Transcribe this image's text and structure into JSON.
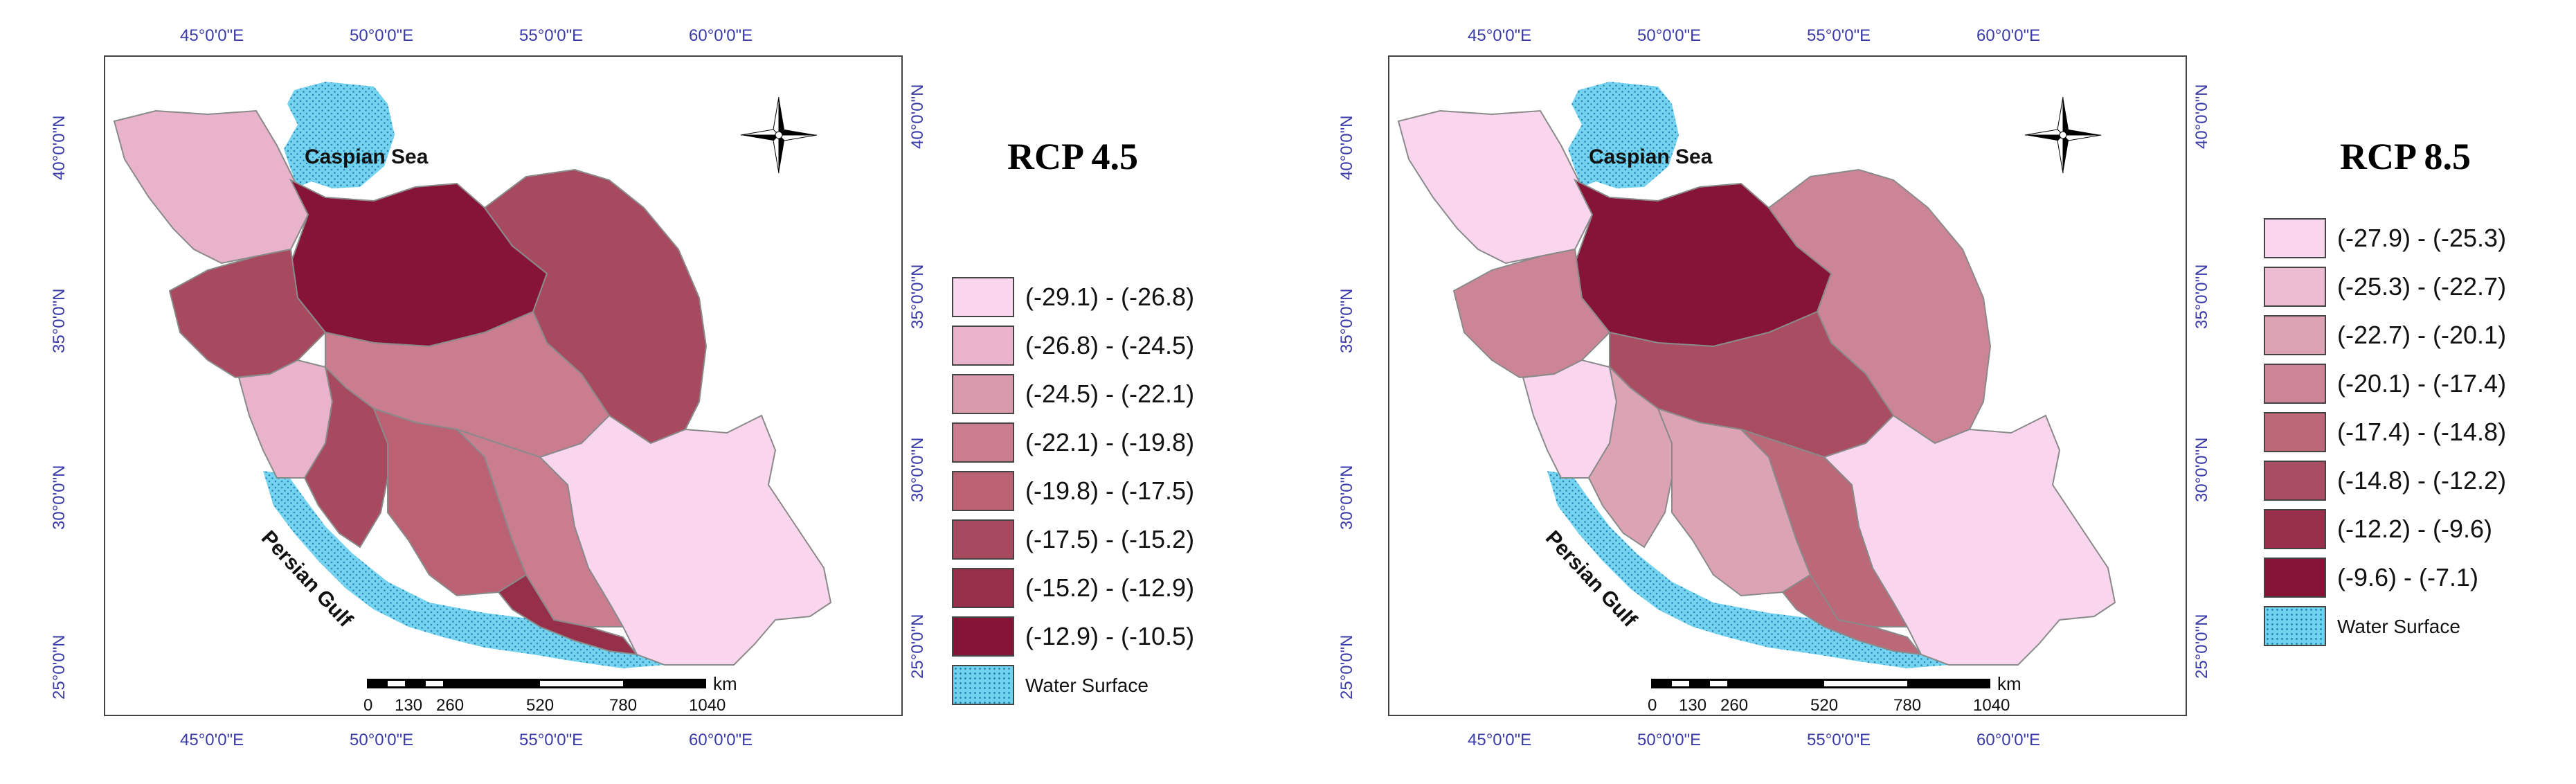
{
  "figures": [
    {
      "title": "RCP 4.5",
      "lon_ticks": [
        "45°0'0\"E",
        "50°0'0\"E",
        "55°0'0\"E",
        "60°0'0\"E"
      ],
      "lat_ticks": [
        "40°0'0\"N",
        "35°0'0\"N",
        "30°0'0\"N",
        "25°0'0\"N"
      ],
      "sea_labels": {
        "caspian": "Caspian Sea",
        "gulf": "Persian Gulf"
      },
      "scale": {
        "unit": "km",
        "ticks": [
          "0",
          "130",
          "260",
          "520",
          "780",
          "1040"
        ]
      },
      "legend": [
        {
          "label": "(-29.1) - (-26.8)",
          "color": "#f9d6ee"
        },
        {
          "label": "(-26.8) - (-24.5)",
          "color": "#e8b3cb"
        },
        {
          "label": "(-24.5) - (-22.1)",
          "color": "#d99aab"
        },
        {
          "label": "(-22.1) - (-19.8)",
          "color": "#c97d8f"
        },
        {
          "label": "(-19.8) - (-17.5)",
          "color": "#ba6274"
        },
        {
          "label": "(-17.5) - (-15.2)",
          "color": "#a84a5f"
        },
        {
          "label": "(-15.2) - (-12.9)",
          "color": "#962f49"
        },
        {
          "label": "(-12.9) - (-10.5)",
          "color": "#861437"
        }
      ],
      "water_label": "Water Surface"
    },
    {
      "title": "RCP 8.5",
      "lon_ticks": [
        "45°0'0\"E",
        "50°0'0\"E",
        "55°0'0\"E",
        "60°0'0\"E"
      ],
      "lat_ticks": [
        "40°0'0\"N",
        "35°0'0\"N",
        "30°0'0\"N",
        "25°0'0\"N"
      ],
      "sea_labels": {
        "caspian": "Caspian Sea",
        "gulf": "Persian Gulf"
      },
      "scale": {
        "unit": "km",
        "ticks": [
          "0",
          "130",
          "260",
          "520",
          "780",
          "1040"
        ]
      },
      "legend": [
        {
          "label": "(-27.9) - (-25.3)",
          "color": "#f9d6ee"
        },
        {
          "label": "(-25.3) - (-22.7)",
          "color": "#ecbcd2"
        },
        {
          "label": "(-22.7) - (-20.1)",
          "color": "#dca3b4"
        },
        {
          "label": "(-20.1) - (-17.4)",
          "color": "#cc8596"
        },
        {
          "label": "(-17.4) - (-14.8)",
          "color": "#bb6879"
        },
        {
          "label": "(-14.8) - (-12.2)",
          "color": "#a84d62"
        },
        {
          "label": "(-12.2) - (-9.6)",
          "color": "#962f49"
        },
        {
          "label": "(-9.6) - (-7.1)",
          "color": "#861437"
        }
      ],
      "water_label": "Water Surface"
    }
  ]
}
